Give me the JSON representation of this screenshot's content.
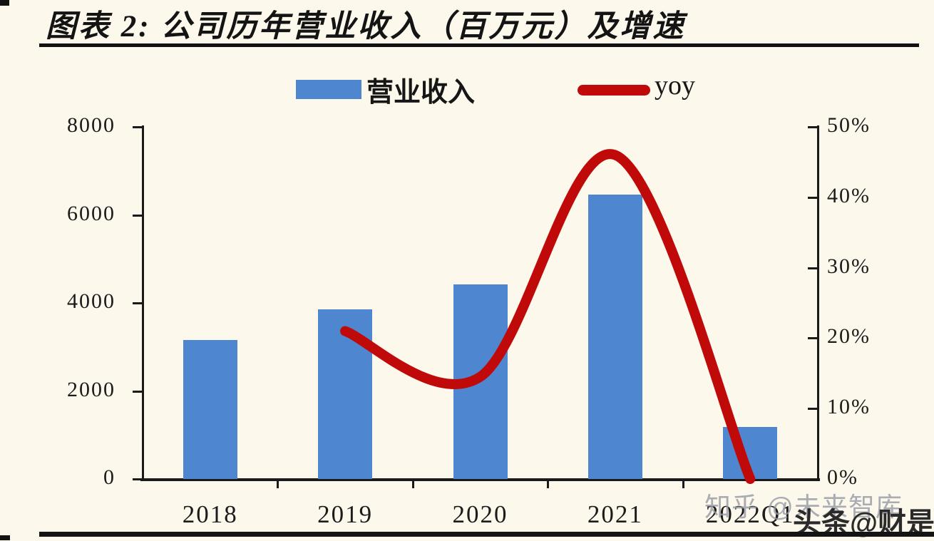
{
  "figure": {
    "title": "图表 2: 公司历年营业收入（百万元）及增速"
  },
  "legend": {
    "revenue_label": "营业收入",
    "yoy_label": "yoy",
    "revenue_color": "#4f86d0",
    "yoy_color": "#c00a0a"
  },
  "watermarks": {
    "gray": "知乎 @未来智库",
    "dark": "头条@财是"
  },
  "colors": {
    "background": "#fdf8ec",
    "bar": "#4f86d0",
    "line": "#c00a0a",
    "axis": "#1a1a1a",
    "text": "#1b1b1b"
  },
  "chart_data": {
    "type": "bar",
    "subtype": "bar+line-dual-axis",
    "title": "图表 2: 公司历年营业收入（百万元）及增速",
    "categories": [
      "2018",
      "2019",
      "2020",
      "2021",
      "2022Q1"
    ],
    "series": [
      {
        "name": "营业收入",
        "type": "bar",
        "axis": "left",
        "color": "#4f86d0",
        "values": [
          3150,
          3850,
          4420,
          6460,
          1190
        ]
      },
      {
        "name": "yoy",
        "type": "line",
        "axis": "right",
        "color": "#c00a0a",
        "values_percent": [
          null,
          21,
          14.5,
          46,
          0
        ]
      }
    ],
    "left_axis": {
      "min": 0,
      "max": 8000,
      "tick_labels": [
        "8000",
        "6000",
        "4000",
        "2000",
        "0"
      ]
    },
    "right_axis": {
      "min": 0,
      "max": 50,
      "unit": "%",
      "tick_labels": [
        "50%",
        "40%",
        "30%",
        "20%",
        "10%",
        "0%"
      ]
    },
    "grid": false,
    "legend_position": "top",
    "line_smooth": true
  }
}
